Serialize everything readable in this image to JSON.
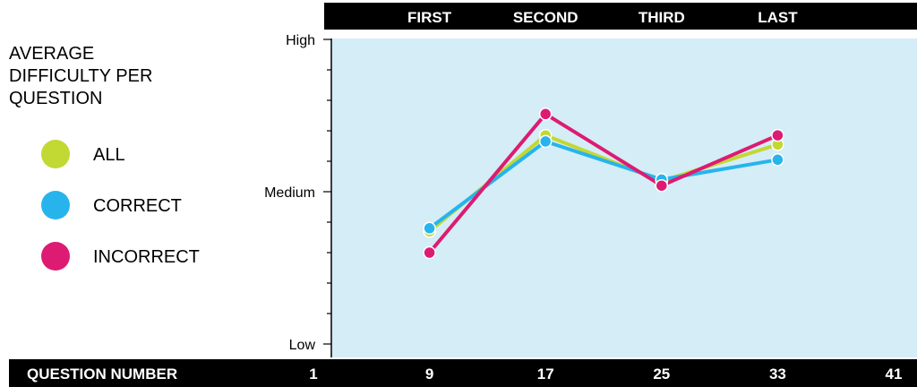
{
  "colors": {
    "plot_background": "#d4edf7",
    "bar_background": "#000000",
    "all": "#c2d833",
    "correct": "#27b4ec",
    "incorrect": "#dd1b72"
  },
  "chart_data": {
    "type": "line",
    "title": [
      "AVERAGE",
      "DIFFICULTY PER",
      "QUESTION"
    ],
    "xlabel": "QUESTION NUMBER",
    "x_ticks": [
      1,
      9,
      17,
      25,
      33,
      41
    ],
    "xlim": [
      1,
      41
    ],
    "quarters": [
      {
        "label": "FIRST",
        "x": 9
      },
      {
        "label": "SECOND",
        "x": 17
      },
      {
        "label": "THIRD",
        "x": 25
      },
      {
        "label": "LAST",
        "x": 33
      }
    ],
    "ylim": [
      0,
      2
    ],
    "y_ticks": [
      {
        "label": "Low",
        "value": 0
      },
      {
        "label": "Medium",
        "value": 1
      },
      {
        "label": "High",
        "value": 2
      }
    ],
    "grid": false,
    "legend_position": "left",
    "x": [
      9,
      17,
      25,
      33
    ],
    "series": [
      {
        "name": "ALL",
        "color_key": "all",
        "values": [
          0.74,
          1.37,
          1.07,
          1.31
        ]
      },
      {
        "name": "CORRECT",
        "color_key": "correct",
        "values": [
          0.76,
          1.33,
          1.08,
          1.21
        ]
      },
      {
        "name": "INCORRECT",
        "color_key": "incorrect",
        "values": [
          0.6,
          1.51,
          1.04,
          1.37
        ]
      }
    ]
  }
}
